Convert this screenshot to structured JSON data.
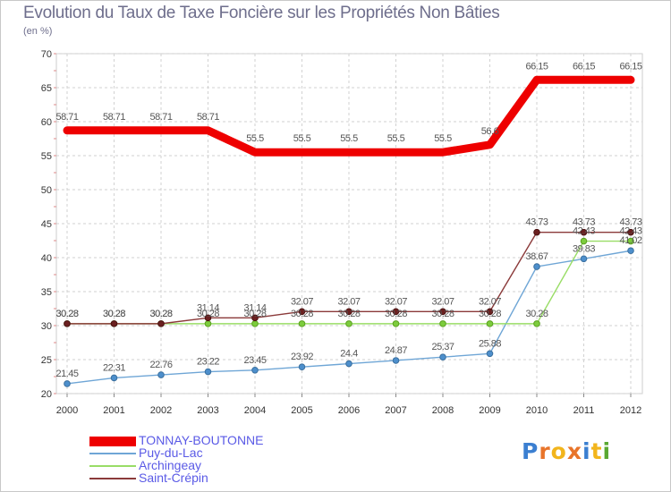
{
  "chart_data": {
    "type": "line",
    "title": "Evolution du Taux de Taxe Foncière sur les Propriétés Non Bâties",
    "ylabel": "(en %)",
    "xlabel": "",
    "ylim": [
      20,
      70
    ],
    "yticks": [
      20,
      25,
      30,
      35,
      40,
      45,
      50,
      55,
      60,
      65,
      70
    ],
    "x": [
      "2000",
      "2001",
      "2002",
      "2003",
      "2004",
      "2005",
      "2006",
      "2007",
      "2008",
      "2009",
      "2010",
      "2011",
      "2012"
    ],
    "grid": true,
    "series": [
      {
        "name": "TONNAY-BOUTONNE",
        "color": "#ee0000",
        "values": [
          58.71,
          58.71,
          58.71,
          58.71,
          55.5,
          55.5,
          55.5,
          55.5,
          55.5,
          56.6,
          66.15,
          66.15,
          66.15
        ],
        "labels": [
          "58.71",
          "58.71",
          "58.71",
          "58.71",
          "55.5",
          "55.5",
          "55.5",
          "55.5",
          "55.5",
          "56.6",
          "66.15",
          "66.15",
          "66.15"
        ]
      },
      {
        "name": "Puy-du-Lac",
        "color": "#6fa6d6",
        "values": [
          21.45,
          22.31,
          22.76,
          23.22,
          23.45,
          23.92,
          24.4,
          24.87,
          25.37,
          25.88,
          38.67,
          39.83,
          41.02
        ],
        "labels": [
          "21.45",
          "22.31",
          "22.76",
          "23.22",
          "23.45",
          "23.92",
          "24.4",
          "24.87",
          "25.37",
          "25.88",
          "38.67",
          "39.83",
          "41.02"
        ]
      },
      {
        "name": "Archingeay",
        "color": "#99dd66",
        "values": [
          30.28,
          30.28,
          30.28,
          30.28,
          30.28,
          30.28,
          30.28,
          30.28,
          30.28,
          30.28,
          30.28,
          42.43,
          42.43
        ],
        "labels": [
          "30.28",
          "30.28",
          "30.28",
          "30.28",
          "30.28",
          "30.28",
          "30.28",
          "30.28",
          "30.28",
          "30.28",
          "30.28",
          "42.43",
          "42.43"
        ]
      },
      {
        "name": "Saint-Crépin",
        "color": "#8b3a3a",
        "values": [
          30.28,
          30.28,
          30.28,
          31.14,
          31.14,
          32.07,
          32.07,
          32.07,
          32.07,
          32.07,
          43.73,
          43.73,
          43.73
        ],
        "labels": [
          "30.28",
          "30.28",
          "30.28",
          "31.14",
          "31.14",
          "32.07",
          "32.07",
          "32.07",
          "32.07",
          "32.07",
          "43.73",
          "43.73",
          "43.73"
        ]
      }
    ]
  },
  "logo": {
    "text": "Proxiti"
  }
}
